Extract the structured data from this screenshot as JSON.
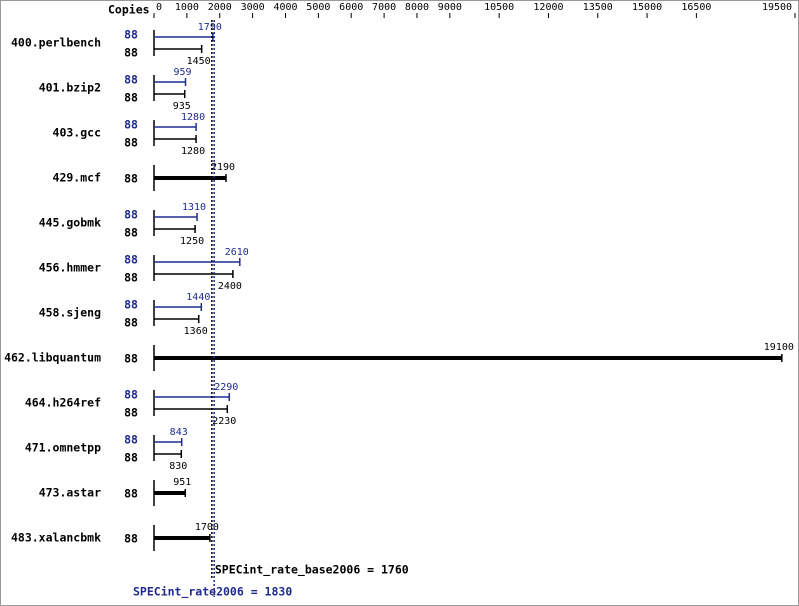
{
  "chart_data": {
    "type": "bar",
    "orientation": "horizontal",
    "copies_label": "Copies",
    "categories": [
      "400.perlbench",
      "401.bzip2",
      "403.gcc",
      "429.mcf",
      "445.gobmk",
      "456.hmmer",
      "458.sjeng",
      "462.libquantum",
      "464.h264ref",
      "471.omnetpp",
      "473.astar",
      "483.xalancbmk"
    ],
    "xlim": [
      0,
      19500
    ],
    "xticks": [
      0,
      1000,
      2000,
      3000,
      4000,
      5000,
      6000,
      7000,
      8000,
      9000,
      10500,
      12000,
      13500,
      15000,
      16500,
      19500
    ],
    "series": [
      {
        "color": "#1f2b8f",
        "copies": [
          88,
          88,
          88,
          null,
          88,
          88,
          88,
          null,
          88,
          88,
          null,
          null
        ],
        "values": [
          1790,
          959,
          1280,
          null,
          1310,
          2610,
          1440,
          null,
          2290,
          843,
          null,
          null
        ]
      },
      {
        "color": "#000000",
        "copies": [
          88,
          88,
          88,
          88,
          88,
          88,
          88,
          88,
          88,
          88,
          88,
          88
        ],
        "values": [
          1450,
          935,
          1280,
          2190,
          1250,
          2400,
          1360,
          19100,
          2230,
          830,
          951,
          1700
        ]
      }
    ],
    "reference_lines": [
      {
        "text": "SPECint_rate_base2006 = 1760",
        "value": 1760,
        "color": "#000000"
      },
      {
        "text": "SPECint_rate2006 = 1830",
        "value": 1830,
        "color": "#1f2b8f"
      }
    ]
  }
}
